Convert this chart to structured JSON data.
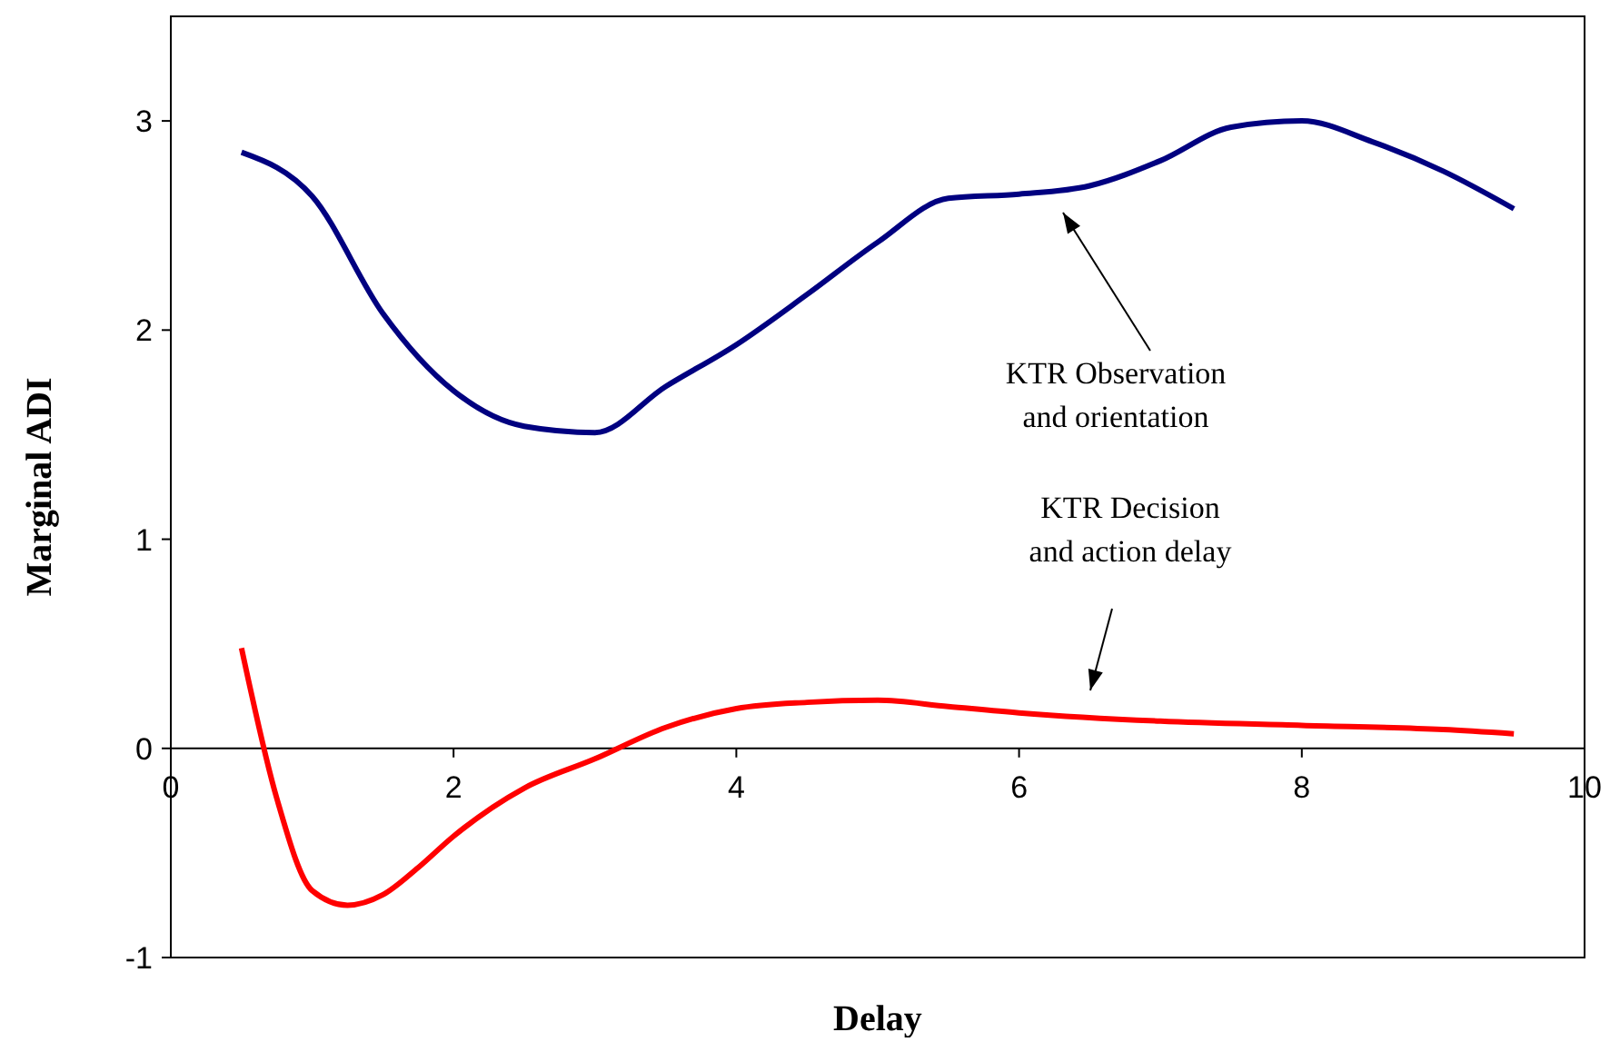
{
  "chart_data": {
    "type": "line",
    "xlabel": "Delay",
    "ylabel": "Marginal ADI",
    "x": [
      0.5,
      1,
      1.5,
      2,
      2.5,
      3,
      3.5,
      4,
      4.5,
      5,
      5.5,
      6,
      6.5,
      7,
      7.5,
      8,
      8.5,
      9,
      9.5
    ],
    "series": [
      {
        "color": "#000080",
        "values": [
          2.85,
          2.64,
          2.08,
          1.71,
          1.54,
          1.51,
          1.73,
          1.93,
          2.17,
          2.42,
          2.63,
          2.65,
          2.69,
          2.81,
          2.97,
          3.0,
          2.9,
          2.76,
          2.58
        ]
      },
      {
        "color": "#ff0000",
        "x": [
          0.5,
          0.75,
          1,
          1.25,
          1.5,
          1.75,
          2,
          2.5,
          3,
          3.5,
          4,
          4.5,
          5,
          5.5,
          6,
          7,
          8,
          9,
          9.5
        ],
        "values": [
          0.48,
          -0.24,
          -0.68,
          -0.75,
          -0.7,
          -0.57,
          -0.42,
          -0.19,
          -0.05,
          0.1,
          0.19,
          0.22,
          0.23,
          0.2,
          0.17,
          0.13,
          0.11,
          0.09,
          0.07
        ]
      }
    ],
    "xlim": [
      0,
      10
    ],
    "xticks": [
      0,
      2,
      4,
      6,
      8,
      10
    ],
    "ylim": [
      -1,
      3.5
    ],
    "yticks": [
      -1,
      0,
      1,
      2,
      3
    ],
    "grid": false,
    "marker": "none",
    "line_style": "solid",
    "annotations": [
      "KTR Observation\nand orientation",
      "KTR Decision\nand action delay"
    ]
  }
}
